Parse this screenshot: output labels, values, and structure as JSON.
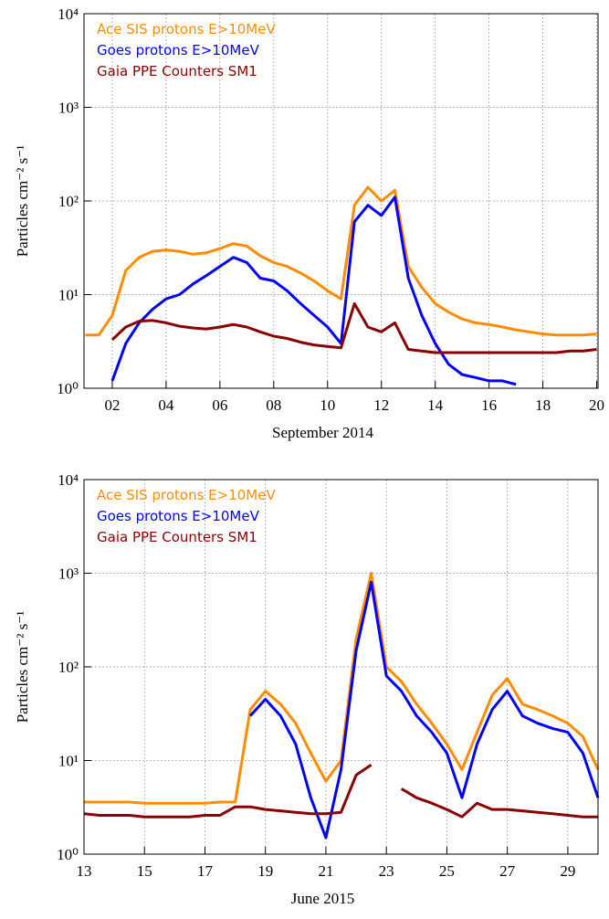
{
  "chart_data": [
    {
      "type": "line",
      "xlabel": "September 2014",
      "ylabel": "Particles cm⁻² s⁻¹",
      "log_y": true,
      "grid": true,
      "legend": "upper left",
      "xlim": [
        0.95,
        20.05
      ],
      "ylim": [
        1,
        10000
      ],
      "xticks": [
        {
          "value": 2,
          "label": "02"
        },
        {
          "value": 4,
          "label": "04"
        },
        {
          "value": 6,
          "label": "06"
        },
        {
          "value": 8,
          "label": "08"
        },
        10,
        12,
        14,
        16,
        18,
        20
      ],
      "yticks": [
        {
          "value": 1,
          "label": "10⁰"
        },
        {
          "value": 10,
          "label": "10¹"
        },
        {
          "value": 100,
          "label": "10²"
        },
        {
          "value": 1000,
          "label": "10³"
        },
        {
          "value": 10000,
          "label": "10⁴"
        }
      ],
      "x": [
        1,
        1.5,
        2,
        2.5,
        3,
        3.5,
        4,
        4.5,
        5,
        5.5,
        6,
        6.5,
        7,
        7.5,
        8,
        8.5,
        9,
        9.5,
        10,
        10.5,
        11,
        11.5,
        12,
        12.5,
        13,
        13.5,
        14,
        14.5,
        15,
        15.5,
        16,
        16.5,
        17,
        17.5,
        18,
        18.5,
        19,
        19.5,
        20
      ],
      "series": [
        {
          "name": "Ace SIS protons E>10MeV",
          "color": "#ff8c00",
          "values": [
            3.7,
            3.7,
            6,
            18,
            25,
            29,
            30,
            29,
            27,
            28,
            31,
            35,
            33,
            26,
            22,
            20,
            17,
            14,
            11,
            9,
            90,
            140,
            100,
            130,
            20,
            12,
            8,
            6.5,
            5.5,
            5,
            4.8,
            4.5,
            4.2,
            4,
            3.8,
            3.7,
            3.7,
            3.7,
            3.8
          ]
        },
        {
          "name": "Goes protons E>10MeV",
          "color": "#0000ff",
          "values": [
            null,
            null,
            1.2,
            3,
            5,
            7,
            9,
            10,
            13,
            16,
            20,
            25,
            22,
            15,
            14,
            11,
            8,
            6,
            4.5,
            3,
            60,
            90,
            70,
            110,
            15,
            6,
            3,
            1.8,
            1.4,
            1.3,
            1.2,
            1.2,
            1.1,
            null,
            null,
            null,
            null,
            null,
            null
          ]
        },
        {
          "name": "Gaia PPE Counters SM1",
          "color": "#8b0000",
          "values": [
            null,
            null,
            3.3,
            4.5,
            5.2,
            5.3,
            5,
            4.6,
            4.4,
            4.3,
            4.5,
            4.8,
            4.5,
            4,
            3.6,
            3.4,
            3.1,
            2.9,
            2.8,
            2.7,
            8,
            4.5,
            4,
            5,
            2.6,
            2.5,
            2.4,
            2.4,
            2.4,
            2.4,
            2.4,
            2.4,
            2.4,
            2.4,
            2.4,
            2.4,
            2.5,
            2.5,
            2.6
          ]
        }
      ]
    },
    {
      "type": "line",
      "xlabel": "June 2015",
      "ylabel": "Particles cm⁻² s⁻¹",
      "log_y": true,
      "grid": true,
      "legend": "upper left",
      "xlim": [
        13,
        30
      ],
      "ylim": [
        1,
        10000
      ],
      "xticks": [
        13,
        15,
        17,
        19,
        21,
        23,
        25,
        27,
        29
      ],
      "yticks": [
        {
          "value": 1,
          "label": "10⁰"
        },
        {
          "value": 10,
          "label": "10¹"
        },
        {
          "value": 100,
          "label": "10²"
        },
        {
          "value": 1000,
          "label": "10³"
        },
        {
          "value": 10000,
          "label": "10⁴"
        }
      ],
      "x": [
        13,
        13.5,
        14,
        14.5,
        15,
        15.5,
        16,
        16.5,
        17,
        17.5,
        18,
        18.5,
        19,
        19.5,
        20,
        20.5,
        21,
        21.5,
        22,
        22.5,
        23,
        23.5,
        24,
        24.5,
        25,
        25.5,
        26,
        26.5,
        27,
        27.5,
        28,
        28.5,
        29,
        29.5,
        30
      ],
      "series": [
        {
          "name": "Ace SIS protons E>10MeV",
          "color": "#ff8c00",
          "values": [
            3.6,
            3.6,
            3.6,
            3.6,
            3.5,
            3.5,
            3.5,
            3.5,
            3.5,
            3.6,
            3.6,
            35,
            55,
            40,
            25,
            12,
            6,
            10,
            200,
            1000,
            100,
            70,
            40,
            25,
            15,
            8,
            20,
            50,
            75,
            40,
            35,
            30,
            25,
            18,
            8
          ]
        },
        {
          "name": "Goes protons E>10MeV",
          "color": "#0000ff",
          "values": [
            null,
            null,
            null,
            null,
            null,
            null,
            null,
            null,
            null,
            null,
            null,
            30,
            45,
            30,
            15,
            4,
            1.5,
            8,
            150,
            800,
            80,
            55,
            30,
            20,
            12,
            4,
            15,
            35,
            55,
            30,
            25,
            22,
            20,
            12,
            4
          ]
        },
        {
          "name": "Gaia PPE Counters SM1",
          "color": "#8b0000",
          "values": [
            2.7,
            2.6,
            2.6,
            2.6,
            2.5,
            2.5,
            2.5,
            2.5,
            2.6,
            2.6,
            3.2,
            3.2,
            3,
            2.9,
            2.8,
            2.7,
            2.7,
            2.8,
            7,
            9,
            null,
            5,
            4,
            3.5,
            3,
            2.5,
            3.5,
            3,
            3,
            2.9,
            2.8,
            2.7,
            2.6,
            2.5,
            2.5
          ]
        }
      ]
    }
  ]
}
